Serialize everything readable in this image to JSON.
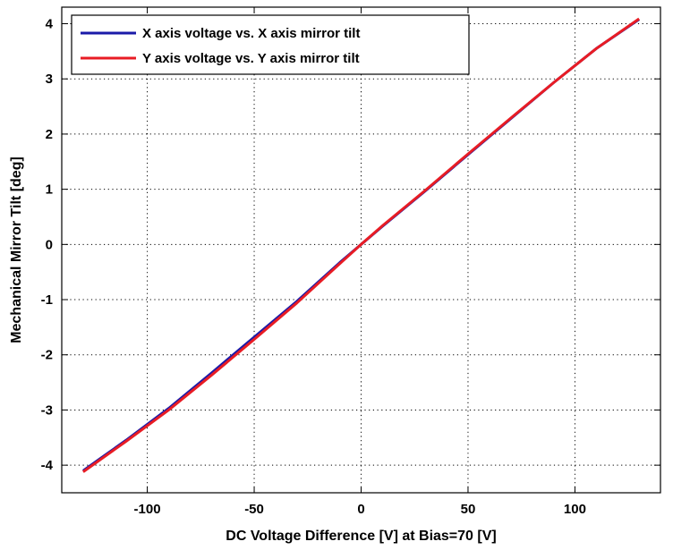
{
  "chart_data": {
    "type": "line",
    "title": "",
    "xlabel": "DC Voltage Difference [V] at Bias=70 [V]",
    "ylabel": "Mechanical Mirror Tilt [deg]",
    "xlim": [
      -140,
      140
    ],
    "ylim": [
      -4.5,
      4.3
    ],
    "xticks": [
      -100,
      -50,
      0,
      50,
      100
    ],
    "yticks": [
      -4,
      -3,
      -2,
      -1,
      0,
      1,
      2,
      3,
      4
    ],
    "grid": true,
    "legend_position": "top-left",
    "series": [
      {
        "name": "X axis voltage vs. X axis mirror tilt",
        "color": "#1a1aa8",
        "x": [
          -130,
          -110,
          -90,
          -70,
          -50,
          -30,
          -10,
          0,
          10,
          30,
          50,
          70,
          90,
          110,
          130
        ],
        "y": [
          -4.1,
          -3.55,
          -2.97,
          -2.33,
          -1.68,
          -1.03,
          -0.33,
          0.0,
          0.33,
          0.97,
          1.63,
          2.28,
          2.93,
          3.55,
          4.08
        ]
      },
      {
        "name": "Y axis voltage vs. Y axis mirror tilt",
        "color": "#e81c24",
        "x": [
          -130,
          -110,
          -90,
          -70,
          -50,
          -30,
          -10,
          0,
          10,
          30,
          50,
          70,
          90,
          110,
          130
        ],
        "y": [
          -4.12,
          -3.57,
          -3.0,
          -2.37,
          -1.72,
          -1.06,
          -0.35,
          0.0,
          0.34,
          0.98,
          1.64,
          2.29,
          2.93,
          3.55,
          4.09
        ]
      }
    ]
  }
}
